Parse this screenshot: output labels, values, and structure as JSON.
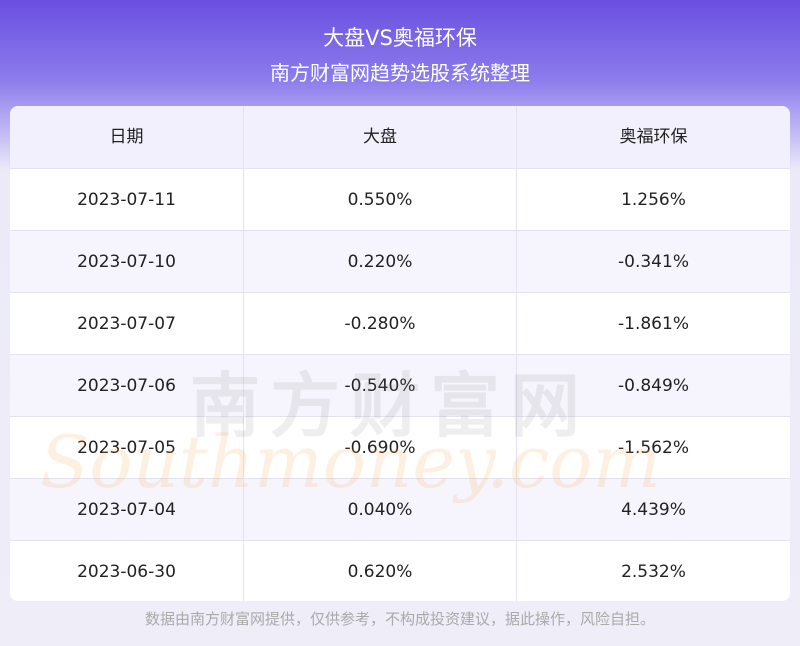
{
  "header": {
    "title": "大盘VS奥福环保",
    "subtitle": "南方财富网趋势选股系统整理"
  },
  "table": {
    "columns": [
      "日期",
      "大盘",
      "奥福环保"
    ],
    "rows": [
      [
        "2023-07-11",
        "0.550%",
        "1.256%"
      ],
      [
        "2023-07-10",
        "0.220%",
        "-0.341%"
      ],
      [
        "2023-07-07",
        "-0.280%",
        "-1.861%"
      ],
      [
        "2023-07-06",
        "-0.540%",
        "-0.849%"
      ],
      [
        "2023-07-05",
        "-0.690%",
        "-1.562%"
      ],
      [
        "2023-07-04",
        "0.040%",
        "4.439%"
      ],
      [
        "2023-06-30",
        "0.620%",
        "2.532%"
      ]
    ]
  },
  "watermark": {
    "cn": "南方财富网",
    "en": "Southmoney.com"
  },
  "footer": "数据由南方财富网提供，仅供参考，不构成投资建议，据此操作，风险自担。"
}
